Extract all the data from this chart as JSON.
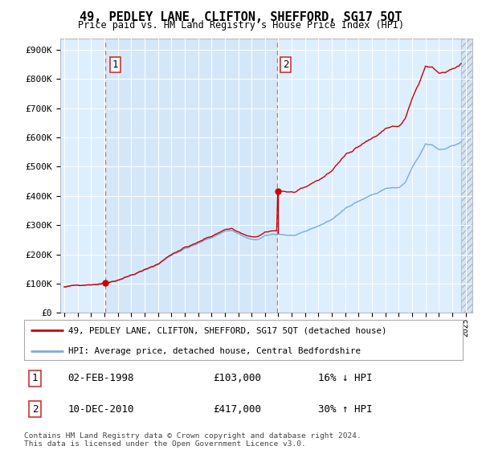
{
  "title": "49, PEDLEY LANE, CLIFTON, SHEFFORD, SG17 5QT",
  "subtitle": "Price paid vs. HM Land Registry's House Price Index (HPI)",
  "background_color": "#ffffff",
  "plot_bg_color": "#ddeeff",
  "ylim": [
    0,
    940000
  ],
  "yticks": [
    0,
    100000,
    200000,
    300000,
    400000,
    500000,
    600000,
    700000,
    800000,
    900000
  ],
  "ytick_labels": [
    "£0",
    "£100K",
    "£200K",
    "£300K",
    "£400K",
    "£500K",
    "£600K",
    "£700K",
    "£800K",
    "£900K"
  ],
  "xlabel_years": [
    1995,
    1996,
    1997,
    1998,
    1999,
    2000,
    2001,
    2002,
    2003,
    2004,
    2005,
    2006,
    2007,
    2008,
    2009,
    2010,
    2011,
    2012,
    2013,
    2014,
    2015,
    2016,
    2017,
    2018,
    2019,
    2020,
    2021,
    2022,
    2023,
    2024,
    2025
  ],
  "xlim_min": 1994.7,
  "xlim_max": 2025.5,
  "purchase1_year": 1998.09,
  "purchase1_price": 103000,
  "purchase2_year": 2010.92,
  "purchase2_price": 417000,
  "purchase1_label": "1",
  "purchase2_label": "2",
  "hpi_color": "#7aaadd",
  "price_color": "#cc0000",
  "dashed_line_color": "#dd6666",
  "legend_entry1": "49, PEDLEY LANE, CLIFTON, SHEFFORD, SG17 5QT (detached house)",
  "legend_entry2": "HPI: Average price, detached house, Central Bedfordshire",
  "table_row1_num": "1",
  "table_row1_date": "02-FEB-1998",
  "table_row1_price": "£103,000",
  "table_row1_hpi": "16% ↓ HPI",
  "table_row2_num": "2",
  "table_row2_date": "10-DEC-2010",
  "table_row2_price": "£417,000",
  "table_row2_hpi": "30% ↑ HPI",
  "footer": "Contains HM Land Registry data © Crown copyright and database right 2024.\nThis data is licensed under the Open Government Licence v3.0."
}
